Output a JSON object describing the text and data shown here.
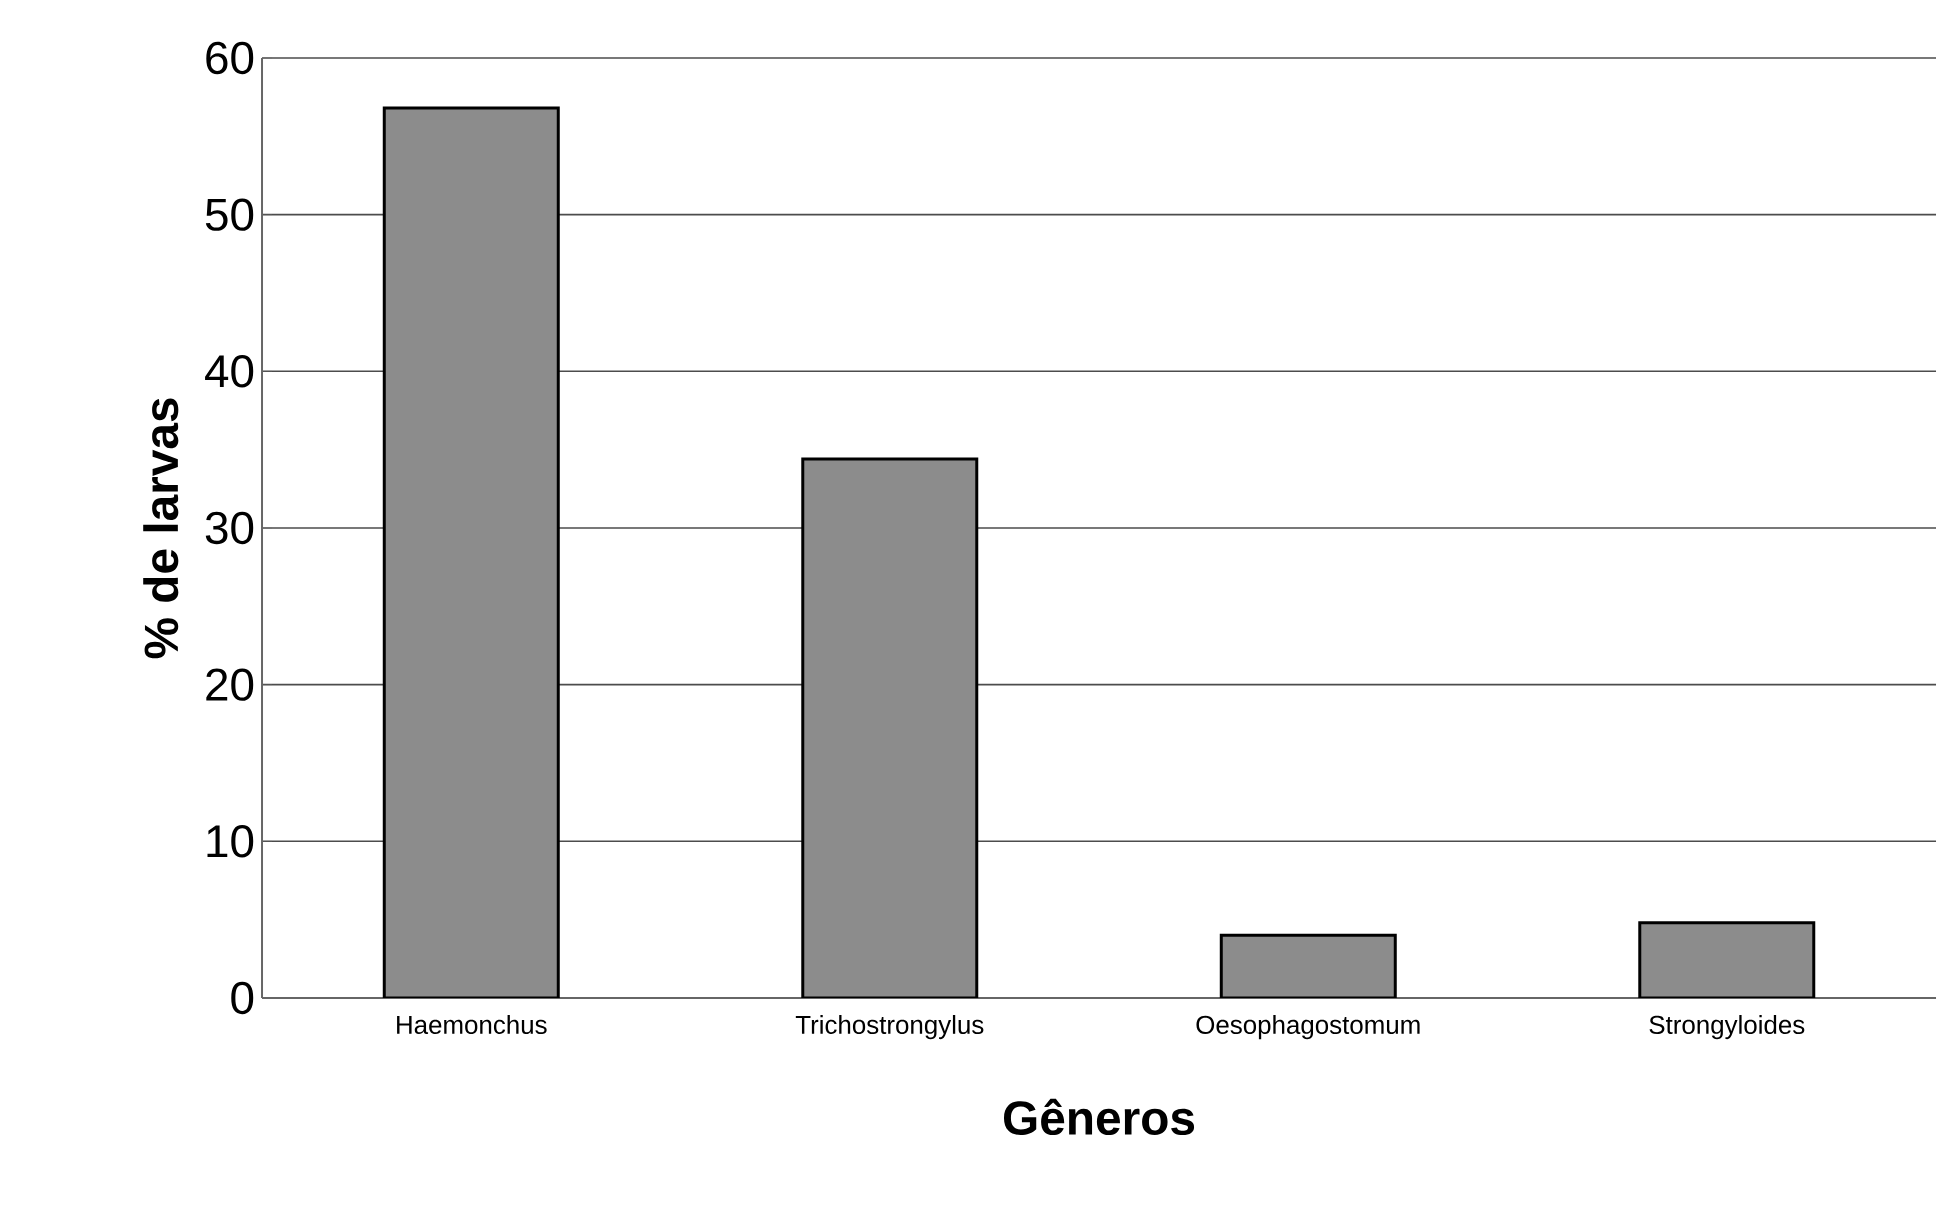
{
  "chart_data": {
    "type": "bar",
    "xlabel": "Gêneros",
    "ylabel": "% de larvas",
    "categories": [
      "Haemonchus",
      "Trichostrongylus",
      "Oesophagostomum",
      "Strongyloides"
    ],
    "values": [
      56.8,
      34.4,
      4.0,
      4.8
    ],
    "color": "#8c8c8c",
    "ylim": [
      0,
      60
    ],
    "yticks": [
      0,
      10,
      20,
      30,
      40,
      50,
      60
    ],
    "grid": "y"
  }
}
